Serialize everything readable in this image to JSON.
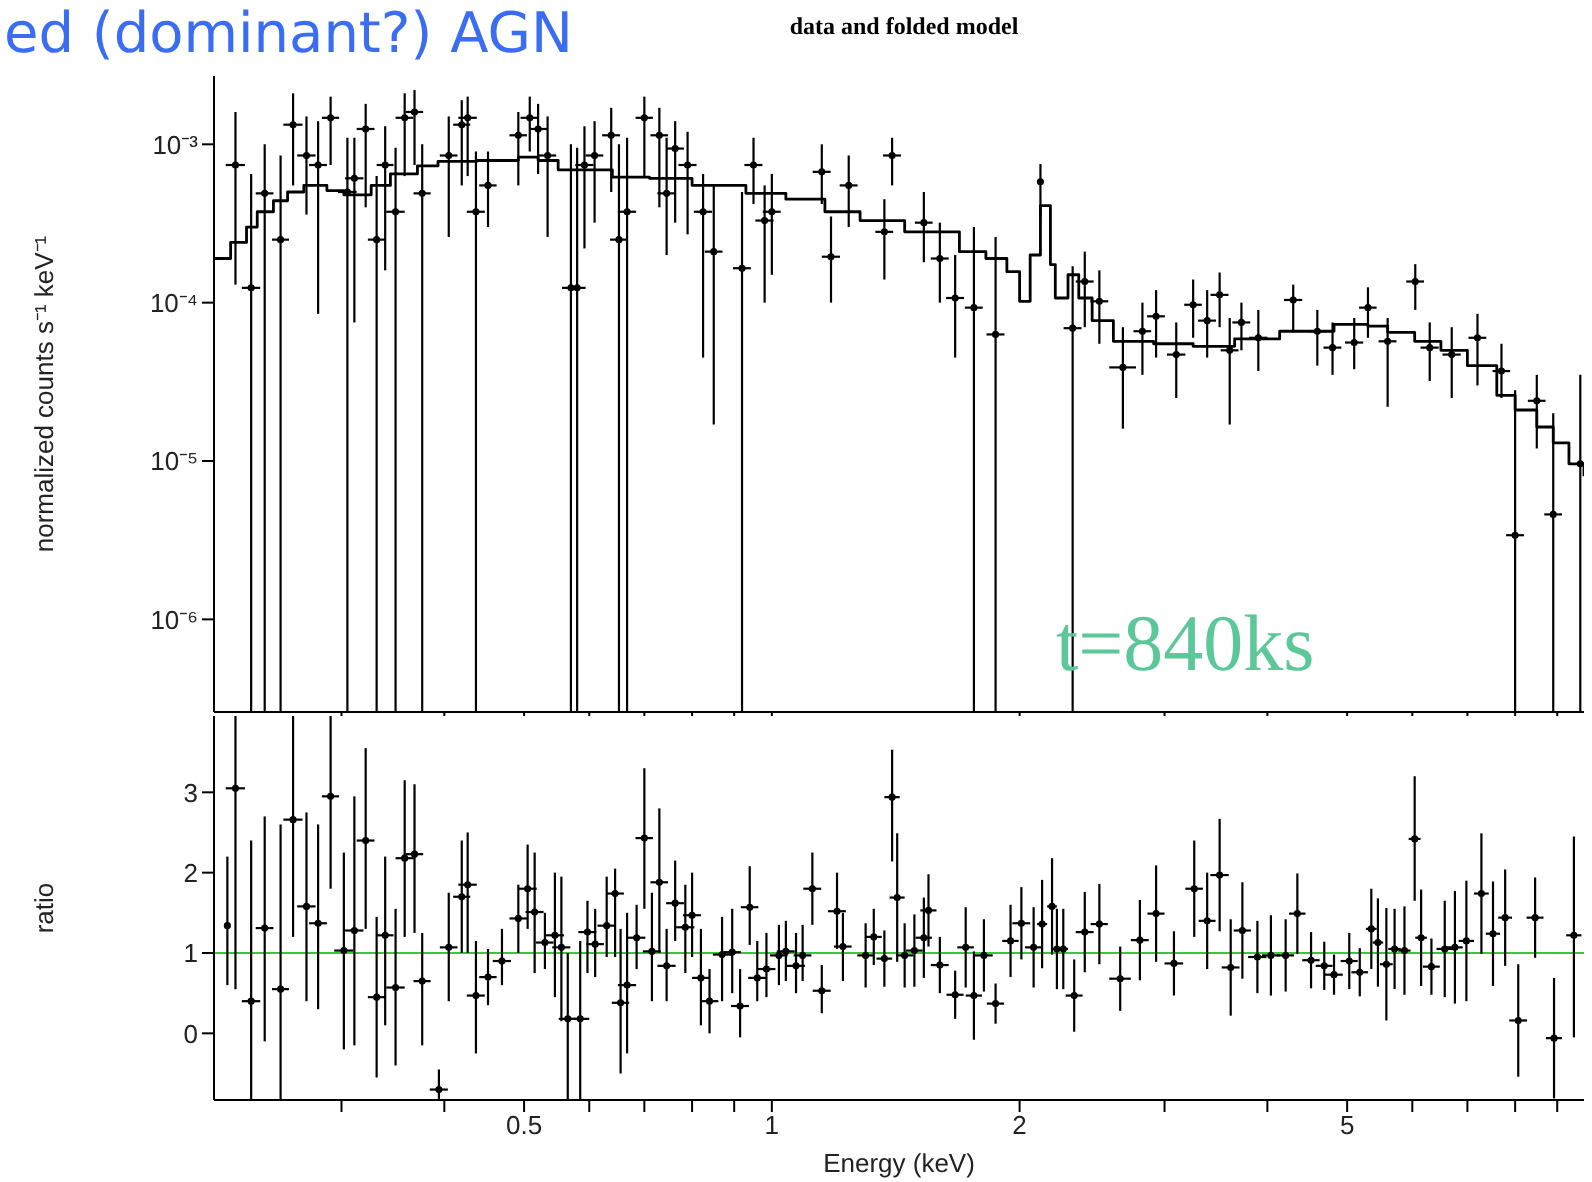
{
  "chart_data": [
    {
      "type": "scatter",
      "title": "data and folded model",
      "ylabel": "normalized counts s⁻¹ keV⁻¹",
      "annotations": [
        "ed (dominant?) AGN",
        "t=840ks"
      ],
      "log": "xy",
      "xlim": [
        0.21,
        9.7
      ],
      "xticks": [
        {
          "value": 0.3,
          "label": null
        },
        {
          "value": 0.4,
          "label": null
        },
        0.5,
        {
          "value": 0.6,
          "label": null
        },
        {
          "value": 0.7,
          "label": null
        },
        {
          "value": 0.8,
          "label": null
        },
        {
          "value": 0.9,
          "label": null
        },
        1,
        2,
        {
          "value": 3,
          "label": null
        },
        {
          "value": 4,
          "label": null
        },
        5,
        {
          "value": 6,
          "label": null
        },
        {
          "value": 7,
          "label": null
        },
        {
          "value": 8,
          "label": null
        },
        {
          "value": 9,
          "label": null
        }
      ],
      "ylim": [
        2.6e-07,
        0.0027
      ],
      "yticks": [
        {
          "value": 1e-06,
          "label": "10⁻⁶"
        },
        {
          "value": 1e-05,
          "label": "10⁻⁵"
        },
        {
          "value": 0.0001,
          "label": "10⁻⁴"
        },
        {
          "value": 0.001,
          "label": "10⁻³"
        }
      ],
      "tick_labels": "y",
      "series": [
        {
          "color": "#000000",
          "marker": "circle",
          "x": [
            0.223,
            0.233,
            0.242,
            0.253,
            0.262,
            0.272,
            0.281,
            0.291,
            0.305,
            0.311,
            0.321,
            0.331,
            0.339,
            0.349,
            0.358,
            0.368,
            0.376,
            0.405,
            0.42,
            0.427,
            0.437,
            0.452,
            0.492,
            0.508,
            0.52,
            0.534,
            0.57,
            0.58,
            0.592,
            0.609,
            0.638,
            0.652,
            0.667,
            0.7,
            0.73,
            0.745,
            0.763,
            0.79,
            0.825,
            0.85,
            0.92,
            0.95,
            0.98,
            1.0,
            1.15,
            1.18,
            1.24,
            1.37,
            1.4,
            1.53,
            1.6,
            1.67,
            1.76,
            1.87,
            2.12,
            2.32,
            2.4,
            2.5,
            2.67,
            2.82,
            2.93,
            3.1,
            3.25,
            3.38,
            3.5,
            3.6,
            3.72,
            3.9,
            4.3,
            4.6,
            4.8,
            5.1,
            5.3,
            5.6,
            6.05,
            6.3,
            6.7,
            7.2,
            7.7,
            8.0,
            8.5,
            8.9,
            9.6
          ],
          "values": [
            0.00074,
            0.000124,
            0.00049,
            0.00025,
            0.00133,
            0.00085,
            0.00074,
            0.00147,
            0.0005,
            0.00061,
            0.00125,
            0.00025,
            0.00074,
            0.000375,
            0.00147,
            0.0016,
            0.00049,
            0.00085,
            0.00133,
            0.00147,
            0.000375,
            0.00055,
            0.00114,
            0.00147,
            0.00125,
            0.00085,
            0.000124,
            0.000124,
            0.00074,
            0.00085,
            0.00114,
            0.00025,
            0.000375,
            0.00147,
            0.00114,
            0.00049,
            0.00094,
            0.00074,
            0.000375,
            0.00021,
            0.000165,
            0.00074,
            0.00033,
            0.000375,
            0.00067,
            0.000195,
            0.00055,
            0.00028,
            0.00085,
            0.00032,
            0.00019,
            0.000107,
            9.3e-05,
            6.3e-05,
            0.00058,
            6.9e-05,
            0.000136,
            0.000102,
            3.9e-05,
            6.6e-05,
            8.2e-05,
            4.7e-05,
            9.7e-05,
            7.7e-05,
            0.000112,
            5e-05,
            7.5e-05,
            6e-05,
            0.000104,
            6.6e-05,
            5.2e-05,
            5.6e-05,
            9.3e-05,
            5.7e-05,
            0.000136,
            5.2e-05,
            4.7e-05,
            6e-05,
            3.7e-05,
            3.4e-06,
            2.4e-05,
            4.6e-06,
            9.6e-06
          ],
          "errors": [
            [
              0.00013,
              0.0016
            ],
            [
              2.6e-07,
              0.00065
            ],
            [
              2.6e-07,
              0.001
            ],
            [
              2.6e-07,
              0.00085
            ],
            [
              0.00055,
              0.0021
            ],
            [
              0.00036,
              0.0015
            ],
            [
              8.5e-05,
              0.0014
            ],
            [
              0.00074,
              0.002
            ],
            [
              2.6e-07,
              0.0011
            ],
            [
              7.5e-05,
              0.0011
            ],
            [
              0.0004,
              0.0018
            ],
            [
              2.6e-07,
              0.00063
            ],
            [
              0.00016,
              0.0013
            ],
            [
              2.6e-07,
              0.00095
            ],
            [
              0.00063,
              0.0021
            ],
            [
              0.00074,
              0.0022
            ],
            [
              2.6e-07,
              0.001
            ],
            [
              0.00026,
              0.0015
            ],
            [
              0.00055,
              0.0019
            ],
            [
              0.00063,
              0.002
            ],
            [
              2.6e-07,
              0.0009
            ],
            [
              0.0003,
              0.0009
            ],
            [
              0.00055,
              0.0016
            ],
            [
              0.0009,
              0.002
            ],
            [
              0.00065,
              0.0018
            ],
            [
              0.00026,
              0.0015
            ],
            [
              2.6e-07,
              0.001
            ],
            [
              2.6e-07,
              0.00095
            ],
            [
              0.00022,
              0.0013
            ],
            [
              0.00032,
              0.0014
            ],
            [
              0.0005,
              0.0017
            ],
            [
              2.6e-07,
              0.001
            ],
            [
              2.6e-07,
              0.0011
            ],
            [
              0.00063,
              0.002
            ],
            [
              0.0004,
              0.0017
            ],
            [
              0.0002,
              0.0011
            ],
            [
              0.00032,
              0.0014
            ],
            [
              0.00027,
              0.0012
            ],
            [
              4.5e-05,
              0.00065
            ],
            [
              1.7e-05,
              0.00055
            ],
            [
              2.6e-07,
              0.0005
            ],
            [
              0.00042,
              0.0011
            ],
            [
              0.0001,
              0.00055
            ],
            [
              0.00015,
              0.00065
            ],
            [
              0.00042,
              0.001
            ],
            [
              0.0001,
              0.00035
            ],
            [
              0.0003,
              0.00085
            ],
            [
              0.00014,
              0.00045
            ],
            [
              0.00055,
              0.0011
            ],
            [
              0.00018,
              0.0005
            ],
            [
              0.0001,
              0.00032
            ],
            [
              4.5e-05,
              0.0002
            ],
            [
              2.6e-07,
              0.0003
            ],
            [
              2.6e-07,
              0.00026
            ],
            [
              0.00035,
              0.00075
            ],
            [
              2.6e-07,
              0.00017
            ],
            [
              7e-05,
              0.00021
            ],
            [
              5.5e-05,
              0.00016
            ],
            [
              1.6e-05,
              7e-05
            ],
            [
              3.5e-05,
              0.0001
            ],
            [
              4.5e-05,
              0.00012
            ],
            [
              2.5e-05,
              7.5e-05
            ],
            [
              6e-05,
              0.00014
            ],
            [
              4.5e-05,
              0.00012
            ],
            [
              7e-05,
              0.000155
            ],
            [
              1.7e-05,
              8e-05
            ],
            [
              5e-05,
              0.0001
            ],
            [
              3.7e-05,
              9e-05
            ],
            [
              6.5e-05,
              0.00013
            ],
            [
              4e-05,
              9e-05
            ],
            [
              3.5e-05,
              7.5e-05
            ],
            [
              3.8e-05,
              8e-05
            ],
            [
              6e-05,
              0.000125
            ],
            [
              2.2e-05,
              8e-05
            ],
            [
              9e-05,
              0.000175
            ],
            [
              3.2e-05,
              7.5e-05
            ],
            [
              2.5e-05,
              7e-05
            ],
            [
              3e-05,
              8.5e-05
            ],
            [
              2.5e-05,
              5.5e-05
            ],
            [
              2.6e-07,
              2.8e-05
            ],
            [
              1.2e-05,
              3.5e-05
            ],
            [
              2.6e-07,
              2e-05
            ],
            [
              2.6e-07,
              3.5e-05
            ]
          ],
          "xerrors": [
            0.006,
            0.006,
            0.006,
            0.006,
            0.007,
            0.007,
            0.007,
            0.007,
            0.008,
            0.008,
            0.008,
            0.008,
            0.008,
            0.009,
            0.009,
            0.009,
            0.009,
            0.01,
            0.01,
            0.011,
            0.011,
            0.011,
            0.012,
            0.013,
            0.013,
            0.013,
            0.014,
            0.014,
            0.015,
            0.015,
            0.016,
            0.016,
            0.017,
            0.017,
            0.018,
            0.019,
            0.019,
            0.02,
            0.021,
            0.021,
            0.023,
            0.024,
            0.025,
            0.025,
            0.029,
            0.03,
            0.031,
            0.034,
            0.035,
            0.038,
            0.04,
            0.042,
            0.044,
            0.047,
            0.02,
            0.058,
            0.06,
            0.063,
            0.1,
            0.07,
            0.073,
            0.08,
            0.08,
            0.085,
            0.088,
            0.09,
            0.093,
            0.1,
            0.11,
            0.12,
            0.12,
            0.13,
            0.13,
            0.14,
            0.15,
            0.16,
            0.17,
            0.18,
            0.19,
            0.2,
            0.21,
            0.22,
            0.1
          ]
        },
        {
          "type": "step",
          "color": "#000000",
          "x": [
            0.21,
            0.22,
            0.23,
            0.237,
            0.248,
            0.258,
            0.27,
            0.288,
            0.302,
            0.326,
            0.344,
            0.371,
            0.393,
            0.438,
            0.492,
            0.52,
            0.55,
            0.59,
            0.64,
            0.71,
            0.8,
            0.93,
            1.04,
            1.16,
            1.28,
            1.45,
            1.69,
            1.82,
            1.93,
            2.0,
            2.06,
            2.12,
            2.18,
            2.21,
            2.29,
            2.36,
            2.45,
            2.6,
            2.91,
            3.25,
            3.65,
            4.14,
            4.82,
            5.3,
            5.6,
            6.04,
            6.5,
            7.0,
            7.6,
            8.0,
            8.5,
            8.9,
            9.3,
            9.7
          ],
          "values": [
            0.00019,
            0.00024,
            0.0003,
            0.000375,
            0.00044,
            0.0005,
            0.00055,
            0.00051,
            0.00048,
            0.00055,
            0.00065,
            0.00073,
            0.00078,
            0.00079,
            0.00083,
            0.00079,
            0.00069,
            0.00069,
            0.00062,
            0.00061,
            0.00055,
            0.00049,
            0.00045,
            0.000375,
            0.00033,
            0.00028,
            0.00021,
            0.00019,
            0.000157,
            0.000102,
            0.0002,
            0.00041,
            0.000174,
            0.000107,
            0.00015,
            0.000107,
            7.7e-05,
            5.7e-05,
            5.5e-05,
            5.3e-05,
            5.9e-05,
            6.6e-05,
            7.3e-05,
            7.1e-05,
            6.5e-05,
            5.7e-05,
            5e-05,
            4e-05,
            2.6e-05,
            2.1e-05,
            1.64e-05,
            1.3e-05,
            9.6e-06,
            8e-06
          ]
        }
      ]
    },
    {
      "type": "scatter",
      "xlabel": "Energy (keV)",
      "ylabel": "ratio",
      "log": "x",
      "xlim": [
        0.21,
        9.7
      ],
      "xticks": [
        {
          "value": 0.3,
          "label": null
        },
        {
          "value": 0.4,
          "label": null
        },
        0.5,
        {
          "value": 0.6,
          "label": null
        },
        {
          "value": 0.7,
          "label": null
        },
        {
          "value": 0.8,
          "label": null
        },
        {
          "value": 0.9,
          "label": null
        },
        1,
        2,
        {
          "value": 3,
          "label": null
        },
        {
          "value": 4,
          "label": null
        },
        5,
        {
          "value": 6,
          "label": null
        },
        {
          "value": 7,
          "label": null
        },
        {
          "value": 8,
          "label": null
        },
        {
          "value": 9,
          "label": null
        }
      ],
      "ylim": [
        -0.83,
        3.95
      ],
      "yticks": [
        0,
        1,
        2,
        3
      ],
      "marker": "circle",
      "ref_lines": [
        {
          "axis": "y",
          "value": 1,
          "color": "#33cc33"
        }
      ],
      "series": [
        {
          "color": "#000000",
          "x": [
            0.218,
            0.223,
            0.233,
            0.242,
            0.253,
            0.262,
            0.272,
            0.281,
            0.291,
            0.302,
            0.311,
            0.321,
            0.331,
            0.339,
            0.349,
            0.358,
            0.368,
            0.376,
            0.394,
            0.405,
            0.42,
            0.427,
            0.437,
            0.452,
            0.47,
            0.492,
            0.505,
            0.515,
            0.53,
            0.545,
            0.555,
            0.565,
            0.585,
            0.597,
            0.61,
            0.63,
            0.645,
            0.655,
            0.667,
            0.685,
            0.7,
            0.715,
            0.73,
            0.745,
            0.763,
            0.785,
            0.8,
            0.82,
            0.84,
            0.87,
            0.895,
            0.915,
            0.94,
            0.96,
            0.985,
            1.02,
            1.04,
            1.07,
            1.09,
            1.12,
            1.15,
            1.2,
            1.22,
            1.3,
            1.33,
            1.37,
            1.4,
            1.42,
            1.45,
            1.49,
            1.53,
            1.55,
            1.6,
            1.67,
            1.72,
            1.76,
            1.81,
            1.87,
            1.95,
            2.01,
            2.08,
            2.13,
            2.19,
            2.22,
            2.26,
            2.33,
            2.4,
            2.5,
            2.65,
            2.8,
            2.93,
            3.08,
            3.26,
            3.38,
            3.5,
            3.61,
            3.73,
            3.89,
            4.04,
            4.21,
            4.35,
            4.52,
            4.69,
            4.82,
            5.03,
            5.18,
            5.35,
            5.45,
            5.58,
            5.71,
            5.87,
            6.04,
            6.15,
            6.33,
            6.57,
            6.76,
            6.98,
            7.28,
            7.52,
            7.78,
            8.07,
            8.46,
            8.92,
            9.43
          ],
          "values": [
            1.34,
            3.05,
            0.4,
            1.31,
            0.55,
            2.66,
            1.58,
            1.37,
            2.95,
            1.03,
            1.28,
            2.4,
            0.45,
            1.22,
            0.57,
            2.18,
            2.23,
            0.65,
            -0.7,
            1.07,
            1.7,
            1.85,
            0.47,
            0.7,
            0.9,
            1.43,
            1.8,
            1.51,
            1.13,
            1.22,
            1.07,
            0.18,
            0.18,
            1.26,
            1.11,
            1.34,
            1.74,
            0.38,
            0.6,
            1.19,
            2.43,
            1.02,
            1.88,
            0.84,
            1.62,
            1.32,
            1.47,
            0.69,
            0.4,
            0.98,
            1.01,
            0.34,
            1.57,
            0.69,
            0.8,
            0.97,
            1.02,
            0.84,
            0.97,
            1.8,
            0.53,
            1.52,
            1.08,
            0.97,
            1.2,
            0.93,
            2.94,
            1.69,
            0.97,
            1.03,
            1.19,
            1.53,
            0.85,
            0.48,
            1.07,
            0.47,
            0.97,
            0.37,
            1.15,
            1.37,
            1.07,
            1.36,
            1.58,
            1.05,
            1.05,
            0.47,
            1.26,
            1.36,
            0.68,
            1.16,
            1.49,
            0.87,
            1.8,
            1.4,
            1.97,
            0.82,
            1.28,
            0.95,
            0.97,
            0.97,
            1.49,
            0.91,
            0.84,
            0.73,
            0.9,
            0.76,
            1.3,
            1.13,
            0.86,
            1.05,
            1.03,
            2.42,
            1.19,
            0.83,
            1.05,
            1.07,
            1.15,
            1.74,
            1.24,
            1.44,
            0.16,
            1.44,
            -0.06,
            1.22
          ],
          "errors": [
            [
              0.6,
              2.2
            ],
            [
              0.55,
              3.95
            ],
            [
              -0.83,
              2.4
            ],
            [
              -0.1,
              2.7
            ],
            [
              -0.83,
              2.6
            ],
            [
              1.2,
              3.95
            ],
            [
              0.4,
              2.75
            ],
            [
              0.3,
              2.6
            ],
            [
              1.8,
              3.95
            ],
            [
              -0.2,
              2.25
            ],
            [
              -0.15,
              2.95
            ],
            [
              1.3,
              3.55
            ],
            [
              -0.55,
              1.45
            ],
            [
              0.1,
              2.2
            ],
            [
              -0.4,
              1.55
            ],
            [
              1.2,
              3.15
            ],
            [
              1.25,
              3.1
            ],
            [
              -0.15,
              1.25
            ],
            [
              -0.83,
              -0.45
            ],
            [
              0.4,
              1.75
            ],
            [
              1.0,
              2.4
            ],
            [
              1.0,
              2.5
            ],
            [
              -0.25,
              1.15
            ],
            [
              0.35,
              1.05
            ],
            [
              0.6,
              1.3
            ],
            [
              1.0,
              1.85
            ],
            [
              1.3,
              2.35
            ],
            [
              0.75,
              2.25
            ],
            [
              0.8,
              1.5
            ],
            [
              0.45,
              2.0
            ],
            [
              0.15,
              1.95
            ],
            [
              -0.83,
              1.0
            ],
            [
              -0.83,
              1.15
            ],
            [
              0.75,
              1.65
            ],
            [
              0.7,
              1.55
            ],
            [
              0.95,
              1.95
            ],
            [
              0.95,
              2.05
            ],
            [
              -0.5,
              1.3
            ],
            [
              -0.25,
              1.5
            ],
            [
              0.8,
              1.6
            ],
            [
              1.55,
              3.3
            ],
            [
              0.4,
              1.75
            ],
            [
              1.0,
              2.8
            ],
            [
              0.4,
              1.3
            ],
            [
              1.15,
              2.15
            ],
            [
              0.75,
              1.85
            ],
            [
              0.95,
              2.0
            ],
            [
              0.1,
              1.3
            ],
            [
              0.0,
              0.8
            ],
            [
              0.4,
              1.45
            ],
            [
              0.5,
              1.55
            ],
            [
              -0.05,
              0.8
            ],
            [
              1.1,
              2.08
            ],
            [
              0.4,
              1.15
            ],
            [
              0.45,
              1.25
            ],
            [
              0.6,
              1.35
            ],
            [
              0.65,
              1.4
            ],
            [
              0.5,
              1.25
            ],
            [
              0.65,
              1.35
            ],
            [
              1.35,
              2.25
            ],
            [
              0.25,
              0.85
            ],
            [
              1.05,
              2.0
            ],
            [
              0.65,
              1.5
            ],
            0.4,
            0.35,
            0.35,
            [
              2.14,
              3.53
            ],
            0.8,
            0.4,
            0.45,
            0.5,
            0.45,
            0.35,
            0.3,
            0.5,
            0.55,
            0.45,
            0.25,
            0.45,
            0.45,
            0.5,
            0.55,
            0.6,
            0.5,
            0.5,
            0.45,
            0.5,
            0.5,
            0.4,
            0.5,
            0.6,
            0.4,
            0.6,
            0.6,
            0.7,
            0.6,
            0.6,
            0.45,
            0.5,
            0.45,
            0.5,
            0.35,
            0.3,
            0.25,
            0.35,
            0.3,
            0.5,
            0.55,
            0.7,
            0.5,
            0.55,
            [
              1.65,
              3.2
            ],
            0.6,
            0.35,
            0.6,
            0.7,
            0.75,
            0.75,
            0.65,
            0.6,
            0.7,
            0.5,
            0.75,
            [
              -0.05,
              2.45
            ]
          ],
          "xerrors": [
            null,
            0.006,
            0.006,
            0.006,
            0.006,
            0.007,
            0.007,
            0.007,
            0.007,
            0.008,
            0.008,
            0.008,
            0.008,
            0.008,
            0.009,
            0.009,
            0.009,
            0.009,
            0.01,
            0.01,
            0.01,
            0.011,
            0.011,
            0.011,
            0.012,
            0.012,
            0.013,
            0.013,
            0.013,
            0.014,
            0.014,
            0.014,
            0.015,
            0.015,
            0.015,
            0.016,
            0.016,
            0.016,
            0.017,
            0.017,
            0.017,
            0.018,
            0.018,
            0.019,
            0.019,
            0.02,
            0.02,
            0.02,
            0.021,
            0.022,
            0.022,
            0.023,
            0.023,
            0.024,
            0.025,
            0.025,
            0.026,
            0.027,
            0.027,
            0.028,
            0.029,
            0.03,
            0.03,
            0.03,
            0.03,
            0.03,
            0.03,
            0.03,
            0.035,
            0.035,
            0.035,
            0.035,
            0.04,
            0.04,
            0.04,
            0.04,
            0.045,
            0.045,
            0.045,
            0.05,
            0.05,
            0.03,
            0.03,
            0.03,
            0.03,
            0.055,
            0.06,
            0.06,
            0.08,
            0.07,
            0.07,
            0.08,
            0.08,
            0.08,
            0.09,
            0.09,
            0.09,
            0.1,
            0.1,
            0.1,
            0.1,
            0.11,
            0.11,
            0.12,
            0.12,
            0.12,
            0.08,
            0.08,
            0.1,
            0.1,
            0.1,
            0.1,
            0.1,
            0.15,
            0.15,
            0.15,
            0.15,
            0.15,
            0.15,
            0.15,
            0.2,
            0.2,
            0.2,
            0.2
          ]
        }
      ]
    }
  ]
}
